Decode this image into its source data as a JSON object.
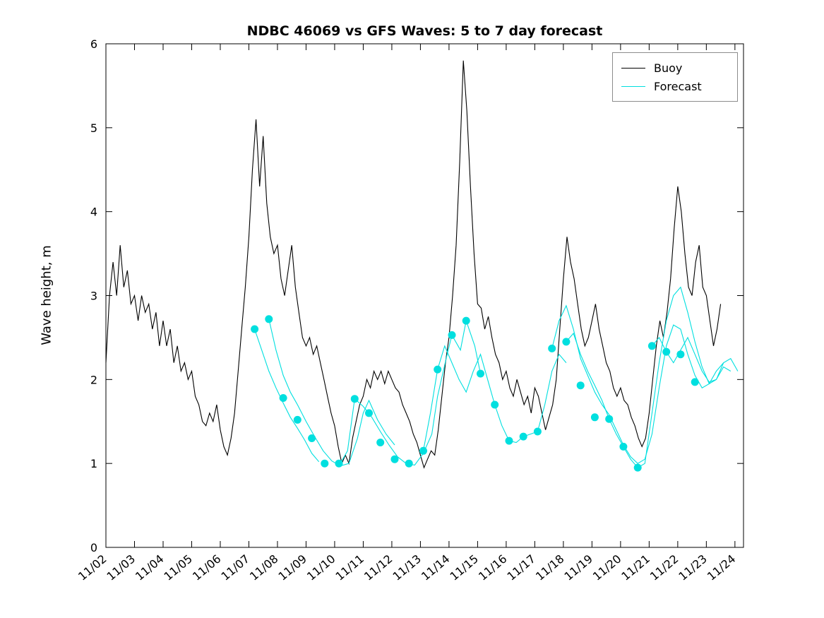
{
  "chart_data": {
    "type": "line",
    "title": "NDBC 46069 vs GFS Waves: 5 to 7 day forecast",
    "xlabel": "",
    "ylabel": "Wave height, m",
    "ylim": [
      0,
      6
    ],
    "yticks": [
      0,
      1,
      2,
      3,
      4,
      5,
      6
    ],
    "xlim": [
      2,
      24.3
    ],
    "grid": false,
    "legend_position": "top-right",
    "xtick_days": [
      2,
      3,
      4,
      5,
      6,
      7,
      8,
      9,
      10,
      11,
      12,
      13,
      14,
      15,
      16,
      17,
      18,
      19,
      20,
      21,
      22,
      23,
      24
    ],
    "xtick_labels": [
      "11/02",
      "11/03",
      "11/04",
      "11/05",
      "11/06",
      "11/07",
      "11/08",
      "11/09",
      "11/10",
      "11/11",
      "11/12",
      "11/13",
      "11/14",
      "11/15",
      "11/16",
      "11/17",
      "11/18",
      "11/19",
      "11/20",
      "11/21",
      "11/22",
      "11/23",
      "11/24"
    ],
    "legend": {
      "entries": [
        {
          "label": "Buoy",
          "color": "#000000"
        },
        {
          "label": "Forecast",
          "color": "#00dfdf"
        }
      ]
    },
    "series": [
      {
        "name": "Buoy",
        "color": "#000000",
        "x_start": 2.0,
        "x_step": 0.125,
        "y": [
          2.2,
          3.0,
          3.4,
          3.0,
          3.6,
          3.1,
          3.3,
          2.9,
          3.0,
          2.7,
          3.0,
          2.8,
          2.9,
          2.6,
          2.8,
          2.4,
          2.7,
          2.4,
          2.6,
          2.2,
          2.4,
          2.1,
          2.2,
          2.0,
          2.1,
          1.8,
          1.7,
          1.5,
          1.45,
          1.6,
          1.5,
          1.7,
          1.4,
          1.2,
          1.1,
          1.3,
          1.6,
          2.1,
          2.6,
          3.1,
          3.7,
          4.5,
          5.1,
          4.3,
          4.9,
          4.1,
          3.7,
          3.5,
          3.6,
          3.2,
          3.0,
          3.3,
          3.6,
          3.1,
          2.8,
          2.5,
          2.4,
          2.5,
          2.3,
          2.4,
          2.2,
          2.0,
          1.8,
          1.6,
          1.45,
          1.2,
          1.0,
          1.1,
          1.0,
          1.3,
          1.5,
          1.7,
          1.8,
          2.0,
          1.9,
          2.1,
          2.0,
          2.1,
          1.95,
          2.1,
          2.0,
          1.9,
          1.85,
          1.7,
          1.6,
          1.5,
          1.35,
          1.25,
          1.1,
          0.95,
          1.05,
          1.15,
          1.1,
          1.4,
          1.8,
          2.2,
          2.5,
          3.0,
          3.6,
          4.6,
          5.8,
          5.2,
          4.3,
          3.5,
          2.9,
          2.85,
          2.6,
          2.75,
          2.5,
          2.3,
          2.2,
          2.0,
          2.1,
          1.9,
          1.8,
          2.0,
          1.85,
          1.7,
          1.8,
          1.6,
          1.9,
          1.8,
          1.6,
          1.4,
          1.55,
          1.7,
          2.0,
          2.6,
          3.2,
          3.7,
          3.4,
          3.2,
          2.9,
          2.6,
          2.4,
          2.5,
          2.7,
          2.9,
          2.6,
          2.4,
          2.2,
          2.1,
          1.9,
          1.8,
          1.9,
          1.75,
          1.7,
          1.55,
          1.45,
          1.3,
          1.2,
          1.3,
          1.6,
          2.0,
          2.4,
          2.7,
          2.5,
          2.8,
          3.2,
          3.8,
          4.3,
          4.0,
          3.5,
          3.1,
          3.0,
          3.4,
          3.6,
          3.1,
          3.0,
          2.7,
          2.4,
          2.6,
          2.9
        ]
      }
    ],
    "forecast": {
      "name": "Forecast",
      "color": "#00dfdf",
      "runs": [
        {
          "x": [
            7.2,
            7.45,
            7.7,
            7.95,
            8.2,
            8.45,
            8.7,
            8.95,
            9.2,
            9.45
          ],
          "y": [
            2.6,
            2.35,
            2.1,
            1.9,
            1.72,
            1.55,
            1.42,
            1.28,
            1.12,
            1.02
          ]
        },
        {
          "x": [
            7.7,
            7.95,
            8.2,
            8.45,
            8.7,
            9.0,
            9.3,
            9.6,
            9.9,
            10.2,
            10.5,
            10.8,
            11.0,
            11.2,
            11.5,
            11.8,
            12.1
          ],
          "y": [
            2.72,
            2.35,
            2.05,
            1.85,
            1.7,
            1.5,
            1.32,
            1.15,
            1.03,
            0.97,
            1.0,
            1.3,
            1.6,
            1.75,
            1.52,
            1.35,
            1.22
          ]
        },
        {
          "x": [
            10.15,
            10.45,
            10.7,
            11.0,
            11.3,
            11.6,
            11.9,
            12.2,
            12.5,
            12.8,
            13.1,
            13.4,
            13.6,
            13.9,
            14.1,
            14.4,
            14.6,
            14.9,
            15.1
          ],
          "y": [
            0.97,
            1.15,
            1.77,
            1.68,
            1.55,
            1.38,
            1.22,
            1.08,
            1.0,
            0.98,
            1.12,
            1.35,
            1.8,
            2.25,
            2.53,
            2.35,
            2.7,
            2.4,
            2.07
          ]
        },
        {
          "x": [
            13.1,
            13.35,
            13.6,
            13.85,
            14.1,
            14.35,
            14.6,
            14.85,
            15.1,
            15.35,
            15.6,
            15.85,
            16.1,
            16.35,
            16.6,
            16.85,
            17.1,
            17.35,
            17.6,
            17.85,
            18.1
          ],
          "y": [
            1.15,
            1.6,
            2.12,
            2.4,
            2.2,
            2.0,
            1.85,
            2.1,
            2.3,
            2.0,
            1.7,
            1.45,
            1.27,
            1.25,
            1.32,
            1.35,
            1.38,
            1.7,
            2.1,
            2.3,
            2.2
          ]
        },
        {
          "x": [
            17.6,
            17.85,
            18.1,
            18.35,
            18.6,
            18.85,
            19.1,
            19.35,
            19.6,
            19.85,
            20.1,
            20.35,
            20.6,
            20.85,
            21.1,
            21.35,
            21.6,
            21.85,
            22.1,
            22.35,
            22.6,
            22.85,
            23.1,
            23.35,
            23.6
          ],
          "y": [
            2.37,
            2.7,
            2.88,
            2.6,
            2.25,
            2.05,
            1.85,
            1.7,
            1.58,
            1.4,
            1.22,
            1.08,
            1.0,
            1.05,
            1.35,
            1.9,
            2.4,
            2.65,
            2.6,
            2.3,
            2.05,
            1.9,
            1.95,
            2.1,
            2.2
          ]
        },
        {
          "x": [
            18.1,
            18.35,
            18.6,
            18.85,
            19.1,
            19.35,
            19.6,
            19.85,
            20.1,
            20.35,
            20.6,
            20.85,
            21.1,
            21.35,
            21.6,
            21.85,
            22.1,
            22.35,
            22.6,
            22.85,
            23.1,
            23.35,
            23.6,
            23.85
          ],
          "y": [
            2.45,
            2.55,
            2.3,
            2.1,
            1.93,
            1.75,
            1.53,
            1.35,
            1.2,
            1.05,
            0.95,
            1.0,
            1.6,
            2.2,
            2.7,
            3.0,
            3.1,
            2.8,
            2.45,
            2.15,
            1.95,
            2.0,
            2.15,
            2.1
          ]
        },
        {
          "x": [
            21.1,
            21.35,
            21.6,
            21.85,
            22.1,
            22.35,
            22.6,
            22.85,
            23.1,
            23.35,
            23.6,
            23.85,
            24.1
          ],
          "y": [
            2.4,
            2.5,
            2.33,
            2.2,
            2.35,
            2.5,
            2.3,
            2.1,
            1.97,
            2.0,
            2.2,
            2.25,
            2.1
          ]
        }
      ],
      "markers": {
        "x": [
          7.2,
          7.7,
          8.2,
          8.7,
          9.2,
          9.65,
          10.15,
          10.7,
          11.2,
          11.6,
          12.1,
          12.6,
          13.1,
          13.6,
          14.1,
          14.6,
          15.1,
          15.6,
          16.1,
          16.6,
          17.1,
          17.6,
          18.1,
          18.6,
          19.1,
          19.6,
          20.1,
          20.6,
          21.1,
          21.6,
          22.1,
          22.6
        ],
        "y": [
          2.6,
          2.72,
          1.78,
          1.52,
          1.3,
          1.0,
          1.0,
          1.77,
          1.6,
          1.25,
          1.05,
          1.0,
          1.15,
          2.12,
          2.53,
          2.7,
          2.07,
          1.7,
          1.27,
          1.32,
          1.38,
          2.37,
          2.45,
          1.93,
          1.55,
          1.53,
          1.2,
          0.95,
          2.4,
          2.33,
          2.3,
          1.97
        ]
      }
    }
  }
}
